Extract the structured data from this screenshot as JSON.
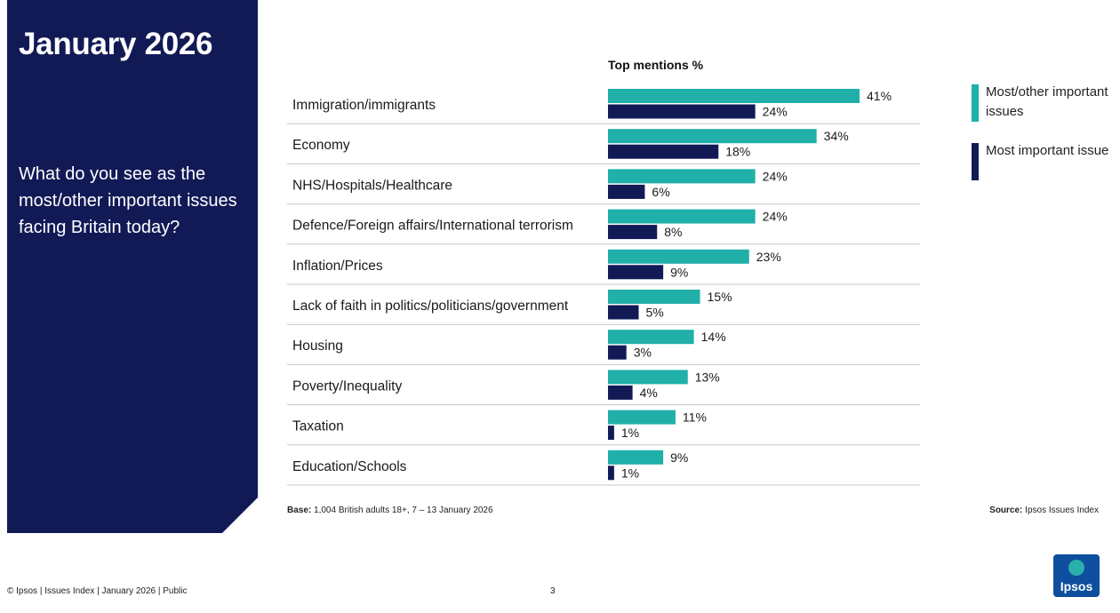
{
  "side": {
    "title": "January 2026",
    "question": "What do you see as the most/other important issues facing Britain today?"
  },
  "chart_header": "Top mentions %",
  "legend": [
    {
      "label": "Most/other important issues",
      "color": "#20afa9"
    },
    {
      "label": "Most important issue",
      "color": "#121a56"
    }
  ],
  "chart_data": {
    "type": "bar",
    "orientation": "horizontal",
    "categories": [
      "Immigration/immigrants",
      "Economy",
      "NHS/Hospitals/Healthcare",
      "Defence/Foreign affairs/International terrorism",
      "Inflation/Prices",
      "Lack of faith in politics/politicians/government",
      "Housing",
      "Poverty/Inequality",
      "Taxation",
      "Education/Schools"
    ],
    "series": [
      {
        "name": "Most/other important issues",
        "values": [
          41,
          34,
          24,
          24,
          23,
          15,
          14,
          13,
          11,
          9
        ],
        "color": "#20afa9"
      },
      {
        "name": "Most important issue",
        "values": [
          24,
          18,
          6,
          8,
          9,
          5,
          3,
          4,
          1,
          1
        ],
        "color": "#121a56"
      }
    ],
    "value_suffix": "%",
    "xlim": [
      0,
      41
    ]
  },
  "base": {
    "label": "Base:",
    "text": "1,004 British adults 18+, 7 – 13 January 2026"
  },
  "source": {
    "label": "Source:",
    "text": "Ipsos Issues Index"
  },
  "footer": {
    "left": "© Ipsos | Issues Index | January 2026 | Public",
    "page": "3"
  },
  "logo": {
    "text": "Ipsos"
  }
}
